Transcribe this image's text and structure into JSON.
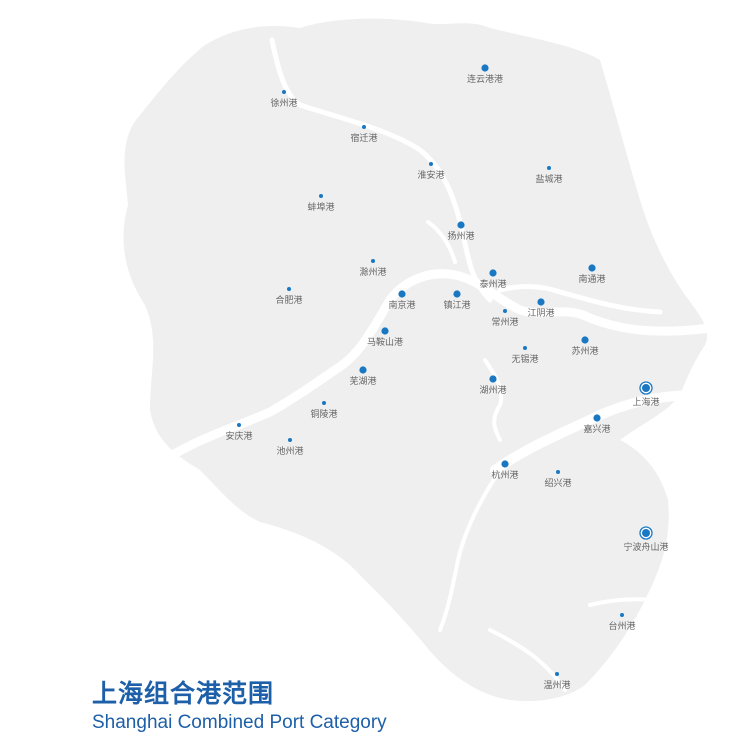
{
  "title": "上海组合港范围",
  "subtitle": "Shanghai Combined Port Category",
  "colors": {
    "land": "#efeff0",
    "water": "#ffffff",
    "port": "#1a78c2",
    "label": "#666666",
    "title": "#1d5fa8"
  },
  "ports": [
    {
      "name": "连云港港",
      "size": "large"
    },
    {
      "name": "徐州港",
      "size": "small"
    },
    {
      "name": "宿迁港",
      "size": "small"
    },
    {
      "name": "淮安港",
      "size": "small"
    },
    {
      "name": "盐城港",
      "size": "small"
    },
    {
      "name": "蚌埠港",
      "size": "small"
    },
    {
      "name": "扬州港",
      "size": "large"
    },
    {
      "name": "滁州港",
      "size": "small"
    },
    {
      "name": "合肥港",
      "size": "small"
    },
    {
      "name": "泰州港",
      "size": "large"
    },
    {
      "name": "南通港",
      "size": "large"
    },
    {
      "name": "南京港",
      "size": "large"
    },
    {
      "name": "镇江港",
      "size": "large"
    },
    {
      "name": "常州港",
      "size": "small"
    },
    {
      "name": "江阴港",
      "size": "large"
    },
    {
      "name": "马鞍山港",
      "size": "large"
    },
    {
      "name": "无锡港",
      "size": "small"
    },
    {
      "name": "苏州港",
      "size": "large"
    },
    {
      "name": "芜湖港",
      "size": "large"
    },
    {
      "name": "湖州港",
      "size": "large"
    },
    {
      "name": "上海港",
      "size": "hub"
    },
    {
      "name": "铜陵港",
      "size": "small"
    },
    {
      "name": "安庆港",
      "size": "small"
    },
    {
      "name": "嘉兴港",
      "size": "large"
    },
    {
      "name": "池州港",
      "size": "small"
    },
    {
      "name": "杭州港",
      "size": "large"
    },
    {
      "name": "绍兴港",
      "size": "small"
    },
    {
      "name": "宁波舟山港",
      "size": "hub"
    },
    {
      "name": "台州港",
      "size": "small"
    },
    {
      "name": "温州港",
      "size": "small"
    }
  ]
}
